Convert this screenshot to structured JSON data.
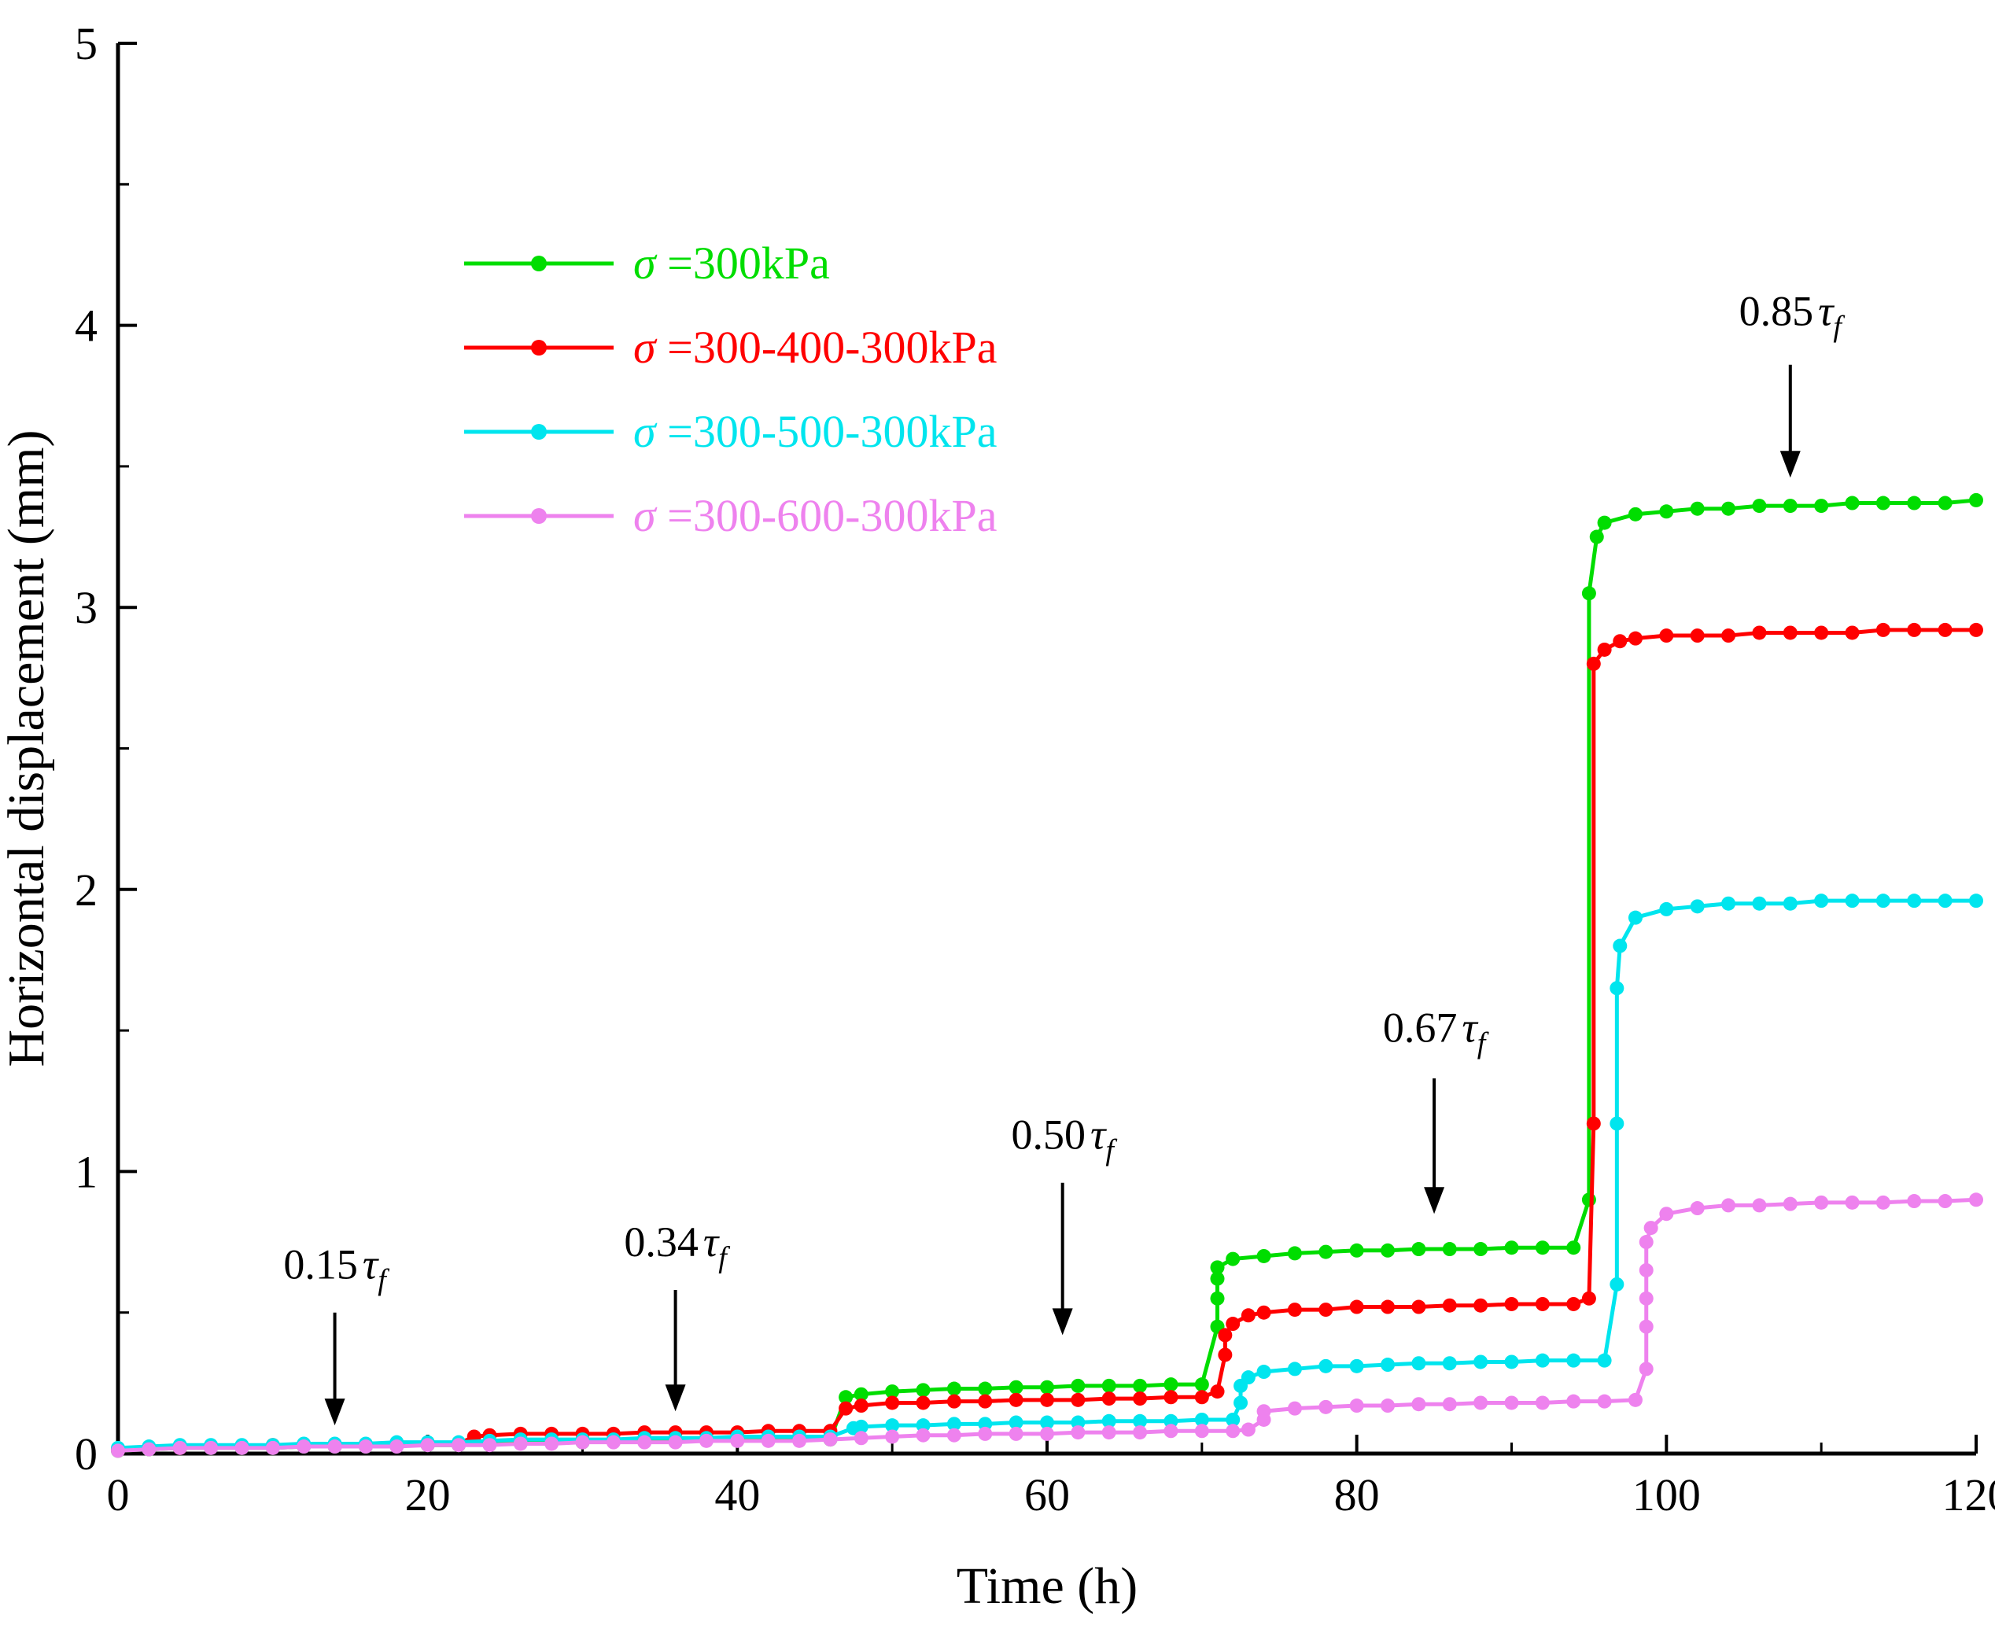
{
  "figure": {
    "background": "#ffffff"
  },
  "chart_data": {
    "type": "line",
    "title": "",
    "xlabel": "Time (h)",
    "ylabel": "Horizontal displacement (mm)",
    "xlim": [
      0,
      120
    ],
    "ylim": [
      0,
      5
    ],
    "xticks": [
      0,
      20,
      40,
      60,
      80,
      100,
      120
    ],
    "yticks": [
      0,
      1,
      2,
      3,
      4,
      5
    ],
    "x_minor_ticks": [
      10,
      30,
      50,
      70,
      90,
      110
    ],
    "y_minor_ticks": [
      0.5,
      1.5,
      2.5,
      3.5,
      4.5
    ],
    "grid": false,
    "legend_position": "upper-left-inside",
    "axis_color": "#000000",
    "series": [
      {
        "name": "σ =300kPa",
        "label_sigma": "σ",
        "label_rest": " =300kPa",
        "color": "#00dd00",
        "points": [
          [
            0,
            0.01
          ],
          [
            2,
            0.015
          ],
          [
            4,
            0.02
          ],
          [
            6,
            0.02
          ],
          [
            8,
            0.02
          ],
          [
            10,
            0.02
          ],
          [
            12,
            0.025
          ],
          [
            14,
            0.025
          ],
          [
            16,
            0.025
          ],
          [
            18,
            0.03
          ],
          [
            20,
            0.03
          ],
          [
            22,
            0.03
          ],
          [
            24,
            0.035
          ],
          [
            26,
            0.04
          ],
          [
            28,
            0.04
          ],
          [
            30,
            0.04
          ],
          [
            32,
            0.045
          ],
          [
            34,
            0.045
          ],
          [
            36,
            0.045
          ],
          [
            38,
            0.05
          ],
          [
            40,
            0.05
          ],
          [
            42,
            0.05
          ],
          [
            44,
            0.05
          ],
          [
            46,
            0.05
          ],
          [
            47,
            0.2
          ],
          [
            48,
            0.21
          ],
          [
            50,
            0.22
          ],
          [
            52,
            0.225
          ],
          [
            54,
            0.23
          ],
          [
            56,
            0.23
          ],
          [
            58,
            0.235
          ],
          [
            60,
            0.235
          ],
          [
            62,
            0.24
          ],
          [
            64,
            0.24
          ],
          [
            66,
            0.24
          ],
          [
            68,
            0.245
          ],
          [
            70,
            0.245
          ],
          [
            71,
            0.45
          ],
          [
            71,
            0.55
          ],
          [
            71,
            0.62
          ],
          [
            71,
            0.66
          ],
          [
            72,
            0.69
          ],
          [
            74,
            0.7
          ],
          [
            76,
            0.71
          ],
          [
            78,
            0.715
          ],
          [
            80,
            0.72
          ],
          [
            82,
            0.72
          ],
          [
            84,
            0.725
          ],
          [
            86,
            0.725
          ],
          [
            88,
            0.725
          ],
          [
            90,
            0.73
          ],
          [
            92,
            0.73
          ],
          [
            94,
            0.73
          ],
          [
            95,
            0.9
          ],
          [
            95,
            3.05
          ],
          [
            95.5,
            3.25
          ],
          [
            96,
            3.3
          ],
          [
            98,
            3.33
          ],
          [
            100,
            3.34
          ],
          [
            102,
            3.35
          ],
          [
            104,
            3.35
          ],
          [
            106,
            3.36
          ],
          [
            108,
            3.36
          ],
          [
            110,
            3.36
          ],
          [
            112,
            3.37
          ],
          [
            114,
            3.37
          ],
          [
            116,
            3.37
          ],
          [
            118,
            3.37
          ],
          [
            120,
            3.38
          ]
        ]
      },
      {
        "name": "σ =300-400-300kPa",
        "label_sigma": "σ",
        "label_rest": " =300-400-300kPa",
        "color": "#ff0000",
        "points": [
          [
            0,
            0.015
          ],
          [
            2,
            0.02
          ],
          [
            4,
            0.02
          ],
          [
            6,
            0.025
          ],
          [
            8,
            0.025
          ],
          [
            10,
            0.03
          ],
          [
            12,
            0.03
          ],
          [
            14,
            0.03
          ],
          [
            16,
            0.03
          ],
          [
            18,
            0.035
          ],
          [
            20,
            0.035
          ],
          [
            22,
            0.035
          ],
          [
            23,
            0.06
          ],
          [
            24,
            0.065
          ],
          [
            26,
            0.07
          ],
          [
            28,
            0.07
          ],
          [
            30,
            0.07
          ],
          [
            32,
            0.07
          ],
          [
            34,
            0.075
          ],
          [
            36,
            0.075
          ],
          [
            38,
            0.075
          ],
          [
            40,
            0.075
          ],
          [
            42,
            0.08
          ],
          [
            44,
            0.08
          ],
          [
            46,
            0.08
          ],
          [
            47,
            0.16
          ],
          [
            48,
            0.17
          ],
          [
            50,
            0.18
          ],
          [
            52,
            0.18
          ],
          [
            54,
            0.185
          ],
          [
            56,
            0.185
          ],
          [
            58,
            0.19
          ],
          [
            60,
            0.19
          ],
          [
            62,
            0.19
          ],
          [
            64,
            0.195
          ],
          [
            66,
            0.195
          ],
          [
            68,
            0.2
          ],
          [
            70,
            0.2
          ],
          [
            71,
            0.22
          ],
          [
            71.5,
            0.35
          ],
          [
            71.5,
            0.42
          ],
          [
            72,
            0.46
          ],
          [
            73,
            0.49
          ],
          [
            74,
            0.5
          ],
          [
            76,
            0.51
          ],
          [
            78,
            0.51
          ],
          [
            80,
            0.52
          ],
          [
            82,
            0.52
          ],
          [
            84,
            0.52
          ],
          [
            86,
            0.525
          ],
          [
            88,
            0.525
          ],
          [
            90,
            0.53
          ],
          [
            92,
            0.53
          ],
          [
            94,
            0.53
          ],
          [
            95,
            0.55
          ],
          [
            95.3,
            1.17
          ],
          [
            95.3,
            2.8
          ],
          [
            96,
            2.85
          ],
          [
            97,
            2.88
          ],
          [
            98,
            2.89
          ],
          [
            100,
            2.9
          ],
          [
            102,
            2.9
          ],
          [
            104,
            2.9
          ],
          [
            106,
            2.91
          ],
          [
            108,
            2.91
          ],
          [
            110,
            2.91
          ],
          [
            112,
            2.91
          ],
          [
            114,
            2.92
          ],
          [
            116,
            2.92
          ],
          [
            118,
            2.92
          ],
          [
            120,
            2.92
          ]
        ]
      },
      {
        "name": "σ =300-500-300kPa",
        "label_sigma": "σ",
        "label_rest": " =300-500-300kPa",
        "color": "#00e5ee",
        "points": [
          [
            0,
            0.02
          ],
          [
            2,
            0.025
          ],
          [
            4,
            0.03
          ],
          [
            6,
            0.03
          ],
          [
            8,
            0.03
          ],
          [
            10,
            0.03
          ],
          [
            12,
            0.035
          ],
          [
            14,
            0.035
          ],
          [
            16,
            0.035
          ],
          [
            18,
            0.04
          ],
          [
            20,
            0.04
          ],
          [
            22,
            0.04
          ],
          [
            24,
            0.045
          ],
          [
            26,
            0.05
          ],
          [
            28,
            0.05
          ],
          [
            30,
            0.05
          ],
          [
            32,
            0.05
          ],
          [
            34,
            0.055
          ],
          [
            36,
            0.055
          ],
          [
            38,
            0.055
          ],
          [
            40,
            0.06
          ],
          [
            42,
            0.06
          ],
          [
            44,
            0.06
          ],
          [
            46,
            0.06
          ],
          [
            47.5,
            0.09
          ],
          [
            48,
            0.095
          ],
          [
            50,
            0.1
          ],
          [
            52,
            0.1
          ],
          [
            54,
            0.105
          ],
          [
            56,
            0.105
          ],
          [
            58,
            0.11
          ],
          [
            60,
            0.11
          ],
          [
            62,
            0.11
          ],
          [
            64,
            0.115
          ],
          [
            66,
            0.115
          ],
          [
            68,
            0.115
          ],
          [
            70,
            0.12
          ],
          [
            72,
            0.12
          ],
          [
            72.5,
            0.18
          ],
          [
            72.5,
            0.24
          ],
          [
            73,
            0.27
          ],
          [
            74,
            0.29
          ],
          [
            76,
            0.3
          ],
          [
            78,
            0.31
          ],
          [
            80,
            0.31
          ],
          [
            82,
            0.315
          ],
          [
            84,
            0.32
          ],
          [
            86,
            0.32
          ],
          [
            88,
            0.325
          ],
          [
            90,
            0.325
          ],
          [
            92,
            0.33
          ],
          [
            94,
            0.33
          ],
          [
            96,
            0.33
          ],
          [
            96.8,
            0.6
          ],
          [
            96.8,
            1.17
          ],
          [
            96.8,
            1.65
          ],
          [
            97,
            1.8
          ],
          [
            98,
            1.9
          ],
          [
            100,
            1.93
          ],
          [
            102,
            1.94
          ],
          [
            104,
            1.95
          ],
          [
            106,
            1.95
          ],
          [
            108,
            1.95
          ],
          [
            110,
            1.96
          ],
          [
            112,
            1.96
          ],
          [
            114,
            1.96
          ],
          [
            116,
            1.96
          ],
          [
            118,
            1.96
          ],
          [
            120,
            1.96
          ]
        ]
      },
      {
        "name": "σ =300-600-300kPa",
        "label_sigma": "σ",
        "label_rest": " =300-600-300kPa",
        "color": "#ee82ee",
        "points": [
          [
            0,
            0.01
          ],
          [
            2,
            0.015
          ],
          [
            4,
            0.02
          ],
          [
            6,
            0.02
          ],
          [
            8,
            0.02
          ],
          [
            10,
            0.02
          ],
          [
            12,
            0.025
          ],
          [
            14,
            0.025
          ],
          [
            16,
            0.025
          ],
          [
            18,
            0.025
          ],
          [
            20,
            0.03
          ],
          [
            22,
            0.03
          ],
          [
            24,
            0.03
          ],
          [
            26,
            0.035
          ],
          [
            28,
            0.035
          ],
          [
            30,
            0.04
          ],
          [
            32,
            0.04
          ],
          [
            34,
            0.04
          ],
          [
            36,
            0.04
          ],
          [
            38,
            0.045
          ],
          [
            40,
            0.045
          ],
          [
            42,
            0.045
          ],
          [
            44,
            0.045
          ],
          [
            46,
            0.05
          ],
          [
            48,
            0.055
          ],
          [
            50,
            0.06
          ],
          [
            52,
            0.065
          ],
          [
            54,
            0.065
          ],
          [
            56,
            0.07
          ],
          [
            58,
            0.07
          ],
          [
            60,
            0.07
          ],
          [
            62,
            0.075
          ],
          [
            64,
            0.075
          ],
          [
            66,
            0.075
          ],
          [
            68,
            0.08
          ],
          [
            70,
            0.08
          ],
          [
            72,
            0.08
          ],
          [
            73,
            0.085
          ],
          [
            74,
            0.12
          ],
          [
            74,
            0.15
          ],
          [
            76,
            0.16
          ],
          [
            78,
            0.165
          ],
          [
            80,
            0.17
          ],
          [
            82,
            0.17
          ],
          [
            84,
            0.175
          ],
          [
            86,
            0.175
          ],
          [
            88,
            0.18
          ],
          [
            90,
            0.18
          ],
          [
            92,
            0.18
          ],
          [
            94,
            0.185
          ],
          [
            96,
            0.185
          ],
          [
            98,
            0.19
          ],
          [
            98.7,
            0.3
          ],
          [
            98.7,
            0.45
          ],
          [
            98.7,
            0.55
          ],
          [
            98.7,
            0.65
          ],
          [
            98.7,
            0.75
          ],
          [
            99,
            0.8
          ],
          [
            100,
            0.85
          ],
          [
            102,
            0.87
          ],
          [
            104,
            0.88
          ],
          [
            106,
            0.88
          ],
          [
            108,
            0.885
          ],
          [
            110,
            0.89
          ],
          [
            112,
            0.89
          ],
          [
            114,
            0.89
          ],
          [
            116,
            0.895
          ],
          [
            118,
            0.895
          ],
          [
            120,
            0.9
          ]
        ]
      }
    ],
    "annotations": [
      {
        "value": "0.15",
        "tau": "τ",
        "sub": "f",
        "x": 14,
        "text_y": 0.62,
        "arrow_top_y": 0.5,
        "arrow_tip_y": 0.1
      },
      {
        "value": "0.34",
        "tau": "τ",
        "sub": "f",
        "x": 36,
        "text_y": 0.7,
        "arrow_top_y": 0.58,
        "arrow_tip_y": 0.15
      },
      {
        "value": "0.50",
        "tau": "τ",
        "sub": "f",
        "x": 61,
        "text_y": 1.08,
        "arrow_top_y": 0.96,
        "arrow_tip_y": 0.42
      },
      {
        "value": "0.67",
        "tau": "τ",
        "sub": "f",
        "x": 85,
        "text_y": 1.46,
        "arrow_top_y": 1.33,
        "arrow_tip_y": 0.85
      },
      {
        "value": "0.85",
        "tau": "τ",
        "sub": "f",
        "x": 108,
        "text_y": 4.0,
        "arrow_top_y": 3.86,
        "arrow_tip_y": 3.46
      }
    ]
  }
}
